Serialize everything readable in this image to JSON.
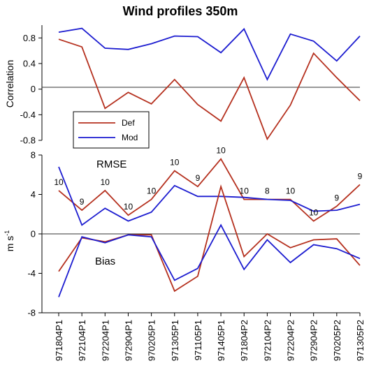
{
  "title": "Wind profiles 350m",
  "categories": [
    "971804P1",
    "972104P1",
    "972204P1",
    "972904P1",
    "970205P1",
    "971305P1",
    "971105P1",
    "971405P1",
    "971804P2",
    "972104P2",
    "972204P2",
    "972904P2",
    "970205P2",
    "971305P2"
  ],
  "colors": {
    "def": "#b5301e",
    "mod": "#1c1cd0",
    "zero": "#333333"
  },
  "legend": {
    "def": "Def",
    "mod": "Mod"
  },
  "chart_data": [
    {
      "type": "line",
      "ylabel": "Correlation",
      "ylim": [
        -0.8,
        1.0
      ],
      "yticks": [
        -0.8,
        -0.4,
        0,
        0.4,
        0.8
      ],
      "ytick_labels": [
        "-0.8",
        "-0.4",
        "0",
        "0.4",
        "0.8"
      ],
      "series": [
        {
          "name": "Def",
          "values": [
            0.78,
            0.66,
            -0.3,
            -0.05,
            -0.23,
            0.15,
            -0.24,
            -0.5,
            0.18,
            -0.78,
            -0.25,
            0.56,
            0.18,
            -0.18
          ]
        },
        {
          "name": "Mod",
          "values": [
            0.89,
            0.95,
            0.64,
            0.62,
            0.71,
            0.83,
            0.82,
            0.57,
            0.94,
            0.15,
            0.86,
            0.75,
            0.44,
            0.83
          ]
        }
      ]
    },
    {
      "type": "line",
      "ylabel": "m s-1",
      "ylim": [
        -8,
        8
      ],
      "yticks": [
        -8,
        -4,
        0,
        4,
        8
      ],
      "ytick_labels": [
        "-8",
        "-4",
        "0",
        "4",
        "8"
      ],
      "annotations": {
        "rmse": "RMSE",
        "bias": "Bias"
      },
      "counts": [
        "10",
        "9",
        "10",
        "10",
        "10",
        "10",
        "9",
        "10",
        "10",
        "8",
        "10",
        "10",
        "9",
        "9"
      ],
      "series": [
        {
          "name": "Def RMSE",
          "values": [
            4.4,
            2.4,
            4.4,
            1.9,
            3.5,
            6.4,
            4.8,
            7.6,
            3.5,
            3.5,
            3.5,
            1.3,
            2.8,
            5.0
          ]
        },
        {
          "name": "Mod RMSE",
          "values": [
            6.8,
            0.9,
            2.6,
            1.3,
            2.2,
            4.9,
            3.8,
            3.8,
            3.7,
            3.5,
            3.4,
            2.3,
            2.4,
            3.0
          ]
        },
        {
          "name": "Def Bias",
          "values": [
            -3.8,
            -0.4,
            -0.8,
            -0.1,
            -0.1,
            -5.8,
            -4.3,
            4.8,
            -2.3,
            0.0,
            -1.4,
            -0.6,
            -0.5,
            -3.2
          ]
        },
        {
          "name": "Mod Bias",
          "values": [
            -6.4,
            -0.3,
            -0.9,
            -0.1,
            -0.3,
            -4.7,
            -3.5,
            0.9,
            -3.6,
            -0.6,
            -2.9,
            -1.1,
            -1.5,
            -2.5
          ]
        }
      ]
    }
  ]
}
